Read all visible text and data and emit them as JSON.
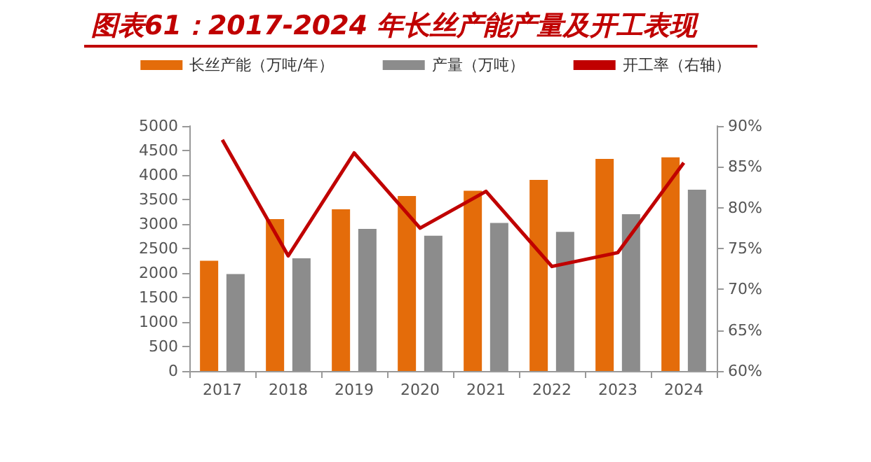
{
  "chart_data": {
    "type": "bar",
    "title": "图表61：2017-2024 年长丝产能产量及开工表现",
    "categories": [
      "2017",
      "2018",
      "2019",
      "2020",
      "2021",
      "2022",
      "2023",
      "2024"
    ],
    "series": [
      {
        "name": "长丝产能（万吨/年）",
        "color": "#e46c0a",
        "values": [
          2250,
          3100,
          3300,
          3570,
          3680,
          3900,
          4330,
          4360
        ]
      },
      {
        "name": "产量（万吨）",
        "color": "#8c8c8c",
        "values": [
          1980,
          2300,
          2900,
          2760,
          3020,
          2840,
          3200,
          3700
        ]
      },
      {
        "name": "开工率（右轴）",
        "type": "line",
        "axis": "y2",
        "color": "#c00000",
        "marker": "none",
        "values": [
          88.3,
          74.1,
          86.7,
          77.5,
          82,
          72.8,
          74.5,
          85.5
        ]
      }
    ],
    "ylim": [
      0,
      5000
    ],
    "yticks": [
      0,
      500,
      1000,
      1500,
      2000,
      2500,
      3000,
      3500,
      4000,
      4500,
      5000
    ],
    "y2lim": [
      60,
      90
    ],
    "y2ticks": [
      {
        "value": 60,
        "label": "60%"
      },
      {
        "value": 65,
        "label": "65%"
      },
      {
        "value": 70,
        "label": "70%"
      },
      {
        "value": 75,
        "label": "75%"
      },
      {
        "value": 80,
        "label": "80%"
      },
      {
        "value": 85,
        "label": "85%"
      },
      {
        "value": 90,
        "label": "90%"
      }
    ],
    "legend": "top",
    "grid": false
  }
}
